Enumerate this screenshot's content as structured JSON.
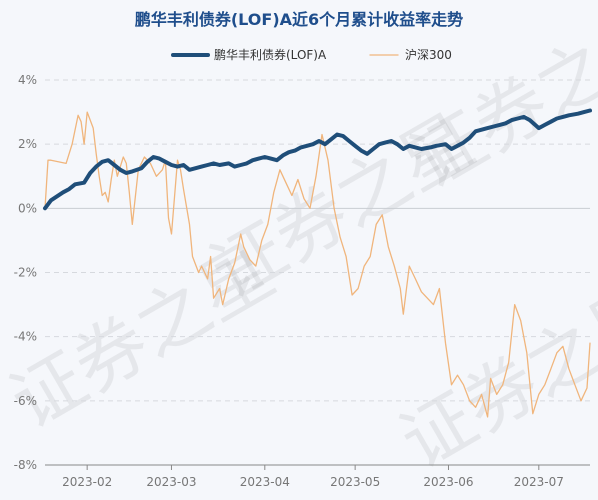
{
  "chart_data": {
    "type": "line",
    "title": "鹏华丰利债券(LOF)A近6个月累计收益率走势",
    "watermark": "证券之星",
    "xlabel": "",
    "ylabel": "",
    "yticks": [
      "4%",
      "2%",
      "0%",
      "-2%",
      "-4%",
      "-6%",
      "-8%"
    ],
    "ylim": [
      -8,
      4
    ],
    "xticks": [
      "2023-02",
      "2023-03",
      "2023-04",
      "2023-05",
      "2023-06",
      "2023-07"
    ],
    "grid": true,
    "legend_position": "top-center",
    "series": [
      {
        "name": "鹏华丰利债券(LOF)A",
        "color": "#1f4e79",
        "points": [
          [
            "2023-01-18",
            0.0
          ],
          [
            "2023-01-20",
            0.25
          ],
          [
            "2023-01-24",
            0.5
          ],
          [
            "2023-01-26",
            0.6
          ],
          [
            "2023-01-28",
            0.75
          ],
          [
            "2023-01-31",
            0.8
          ],
          [
            "2023-02-02",
            1.1
          ],
          [
            "2023-02-04",
            1.3
          ],
          [
            "2023-02-06",
            1.45
          ],
          [
            "2023-02-08",
            1.5
          ],
          [
            "2023-02-10",
            1.35
          ],
          [
            "2023-02-12",
            1.2
          ],
          [
            "2023-02-14",
            1.1
          ],
          [
            "2023-02-16",
            1.15
          ],
          [
            "2023-02-19",
            1.25
          ],
          [
            "2023-02-21",
            1.45
          ],
          [
            "2023-02-23",
            1.6
          ],
          [
            "2023-02-25",
            1.55
          ],
          [
            "2023-02-27",
            1.45
          ],
          [
            "2023-03-01",
            1.35
          ],
          [
            "2023-03-03",
            1.3
          ],
          [
            "2023-03-05",
            1.35
          ],
          [
            "2023-03-07",
            1.2
          ],
          [
            "2023-03-09",
            1.25
          ],
          [
            "2023-03-11",
            1.3
          ],
          [
            "2023-03-13",
            1.35
          ],
          [
            "2023-03-15",
            1.4
          ],
          [
            "2023-03-17",
            1.35
          ],
          [
            "2023-03-20",
            1.4
          ],
          [
            "2023-03-22",
            1.3
          ],
          [
            "2023-03-24",
            1.35
          ],
          [
            "2023-03-26",
            1.4
          ],
          [
            "2023-03-28",
            1.5
          ],
          [
            "2023-03-30",
            1.55
          ],
          [
            "2023-04-01",
            1.6
          ],
          [
            "2023-04-03",
            1.55
          ],
          [
            "2023-04-05",
            1.5
          ],
          [
            "2023-04-07",
            1.65
          ],
          [
            "2023-04-09",
            1.75
          ],
          [
            "2023-04-11",
            1.8
          ],
          [
            "2023-04-13",
            1.9
          ],
          [
            "2023-04-15",
            1.95
          ],
          [
            "2023-04-17",
            2.0
          ],
          [
            "2023-04-19",
            2.1
          ],
          [
            "2023-04-21",
            2.0
          ],
          [
            "2023-04-23",
            2.15
          ],
          [
            "2023-04-25",
            2.3
          ],
          [
            "2023-04-27",
            2.25
          ],
          [
            "2023-04-29",
            2.1
          ],
          [
            "2023-05-01",
            1.95
          ],
          [
            "2023-05-03",
            1.8
          ],
          [
            "2023-05-05",
            1.7
          ],
          [
            "2023-05-07",
            1.85
          ],
          [
            "2023-05-09",
            2.0
          ],
          [
            "2023-05-11",
            2.05
          ],
          [
            "2023-05-13",
            2.1
          ],
          [
            "2023-05-15",
            2.0
          ],
          [
            "2023-05-17",
            1.85
          ],
          [
            "2023-05-19",
            1.95
          ],
          [
            "2023-05-21",
            1.9
          ],
          [
            "2023-05-23",
            1.85
          ],
          [
            "2023-05-26",
            1.9
          ],
          [
            "2023-05-28",
            1.95
          ],
          [
            "2023-05-31",
            2.0
          ],
          [
            "2023-06-02",
            1.85
          ],
          [
            "2023-06-04",
            1.95
          ],
          [
            "2023-06-06",
            2.05
          ],
          [
            "2023-06-08",
            2.2
          ],
          [
            "2023-06-10",
            2.4
          ],
          [
            "2023-06-12",
            2.45
          ],
          [
            "2023-06-14",
            2.5
          ],
          [
            "2023-06-16",
            2.55
          ],
          [
            "2023-06-18",
            2.6
          ],
          [
            "2023-06-20",
            2.65
          ],
          [
            "2023-06-22",
            2.75
          ],
          [
            "2023-06-24",
            2.8
          ],
          [
            "2023-06-26",
            2.85
          ],
          [
            "2023-06-28",
            2.75
          ],
          [
            "2023-07-01",
            2.5
          ],
          [
            "2023-07-03",
            2.6
          ],
          [
            "2023-07-05",
            2.7
          ],
          [
            "2023-07-07",
            2.8
          ],
          [
            "2023-07-09",
            2.85
          ],
          [
            "2023-07-11",
            2.9
          ],
          [
            "2023-07-14",
            2.95
          ],
          [
            "2023-07-16",
            3.0
          ],
          [
            "2023-07-18",
            3.05
          ]
        ]
      },
      {
        "name": "沪深300",
        "color": "#f0b57c",
        "points": [
          [
            "2023-01-18",
            0.0
          ],
          [
            "2023-01-19",
            1.5
          ],
          [
            "2023-01-20",
            1.5
          ],
          [
            "2023-01-25",
            1.4
          ],
          [
            "2023-01-27",
            2.0
          ],
          [
            "2023-01-29",
            2.9
          ],
          [
            "2023-01-30",
            2.7
          ],
          [
            "2023-01-31",
            2.0
          ],
          [
            "2023-02-01",
            3.0
          ],
          [
            "2023-02-03",
            2.5
          ],
          [
            "2023-02-04",
            1.7
          ],
          [
            "2023-02-05",
            1.0
          ],
          [
            "2023-02-06",
            0.4
          ],
          [
            "2023-02-07",
            0.5
          ],
          [
            "2023-02-08",
            0.2
          ],
          [
            "2023-02-09",
            0.9
          ],
          [
            "2023-02-10",
            1.5
          ],
          [
            "2023-02-11",
            1.0
          ],
          [
            "2023-02-13",
            1.6
          ],
          [
            "2023-02-14",
            1.4
          ],
          [
            "2023-02-15",
            0.5
          ],
          [
            "2023-02-16",
            -0.5
          ],
          [
            "2023-02-18",
            1.2
          ],
          [
            "2023-02-20",
            1.6
          ],
          [
            "2023-02-22",
            1.4
          ],
          [
            "2023-02-24",
            1.0
          ],
          [
            "2023-02-26",
            1.2
          ],
          [
            "2023-02-27",
            1.5
          ],
          [
            "2023-02-28",
            -0.3
          ],
          [
            "2023-03-01",
            -0.8
          ],
          [
            "2023-03-03",
            1.5
          ],
          [
            "2023-03-04",
            1.2
          ],
          [
            "2023-03-05",
            0.6
          ],
          [
            "2023-03-07",
            -0.5
          ],
          [
            "2023-03-08",
            -1.5
          ],
          [
            "2023-03-10",
            -2.0
          ],
          [
            "2023-03-11",
            -1.8
          ],
          [
            "2023-03-13",
            -2.2
          ],
          [
            "2023-03-14",
            -1.5
          ],
          [
            "2023-03-15",
            -2.8
          ],
          [
            "2023-03-17",
            -2.5
          ],
          [
            "2023-03-18",
            -3.0
          ],
          [
            "2023-03-20",
            -2.2
          ],
          [
            "2023-03-22",
            -1.7
          ],
          [
            "2023-03-24",
            -0.8
          ],
          [
            "2023-03-25",
            -1.2
          ],
          [
            "2023-03-27",
            -1.6
          ],
          [
            "2023-03-29",
            -1.8
          ],
          [
            "2023-03-31",
            -1.0
          ],
          [
            "2023-04-02",
            -0.5
          ],
          [
            "2023-04-04",
            0.5
          ],
          [
            "2023-04-06",
            1.2
          ],
          [
            "2023-04-08",
            0.8
          ],
          [
            "2023-04-10",
            0.4
          ],
          [
            "2023-04-12",
            0.9
          ],
          [
            "2023-04-14",
            0.3
          ],
          [
            "2023-04-16",
            0.0
          ],
          [
            "2023-04-18",
            1.0
          ],
          [
            "2023-04-20",
            2.3
          ],
          [
            "2023-04-22",
            1.5
          ],
          [
            "2023-04-24",
            0.0
          ],
          [
            "2023-04-26",
            -0.9
          ],
          [
            "2023-04-28",
            -1.5
          ],
          [
            "2023-04-30",
            -2.7
          ],
          [
            "2023-05-02",
            -2.5
          ],
          [
            "2023-05-04",
            -1.8
          ],
          [
            "2023-05-06",
            -1.5
          ],
          [
            "2023-05-08",
            -0.5
          ],
          [
            "2023-05-10",
            -0.2
          ],
          [
            "2023-05-12",
            -1.2
          ],
          [
            "2023-05-14",
            -1.8
          ],
          [
            "2023-05-16",
            -2.5
          ],
          [
            "2023-05-17",
            -3.3
          ],
          [
            "2023-05-19",
            -1.8
          ],
          [
            "2023-05-21",
            -2.2
          ],
          [
            "2023-05-23",
            -2.6
          ],
          [
            "2023-05-25",
            -2.8
          ],
          [
            "2023-05-27",
            -3.0
          ],
          [
            "2023-05-29",
            -2.5
          ],
          [
            "2023-05-31",
            -4.2
          ],
          [
            "2023-06-02",
            -5.5
          ],
          [
            "2023-06-04",
            -5.2
          ],
          [
            "2023-06-06",
            -5.5
          ],
          [
            "2023-06-08",
            -6.0
          ],
          [
            "2023-06-10",
            -6.2
          ],
          [
            "2023-06-12",
            -5.8
          ],
          [
            "2023-06-14",
            -6.5
          ],
          [
            "2023-06-15",
            -5.3
          ],
          [
            "2023-06-17",
            -5.8
          ],
          [
            "2023-06-19",
            -5.5
          ],
          [
            "2023-06-21",
            -4.8
          ],
          [
            "2023-06-23",
            -3.0
          ],
          [
            "2023-06-25",
            -3.5
          ],
          [
            "2023-06-27",
            -4.5
          ],
          [
            "2023-06-29",
            -6.4
          ],
          [
            "2023-07-01",
            -5.8
          ],
          [
            "2023-07-03",
            -5.5
          ],
          [
            "2023-07-05",
            -5.0
          ],
          [
            "2023-07-07",
            -4.5
          ],
          [
            "2023-07-09",
            -4.3
          ],
          [
            "2023-07-11",
            -5.0
          ],
          [
            "2023-07-13",
            -5.5
          ],
          [
            "2023-07-15",
            -6.0
          ],
          [
            "2023-07-17",
            -5.6
          ],
          [
            "2023-07-18",
            -4.2
          ]
        ]
      }
    ]
  }
}
